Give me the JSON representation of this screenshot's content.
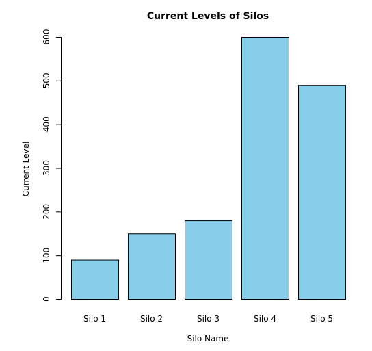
{
  "chart_data": {
    "type": "bar",
    "title": "Current Levels of Silos",
    "xlabel": "Silo Name",
    "ylabel": "Current Level",
    "categories": [
      "Silo 1",
      "Silo 2",
      "Silo 3",
      "Silo 4",
      "Silo 5"
    ],
    "values": [
      90,
      150,
      180,
      600,
      490
    ],
    "ylim": [
      0,
      600
    ],
    "yticks": [
      0,
      100,
      200,
      300,
      400,
      500,
      600
    ],
    "bar_color": "#87CEEB",
    "grid": false
  }
}
